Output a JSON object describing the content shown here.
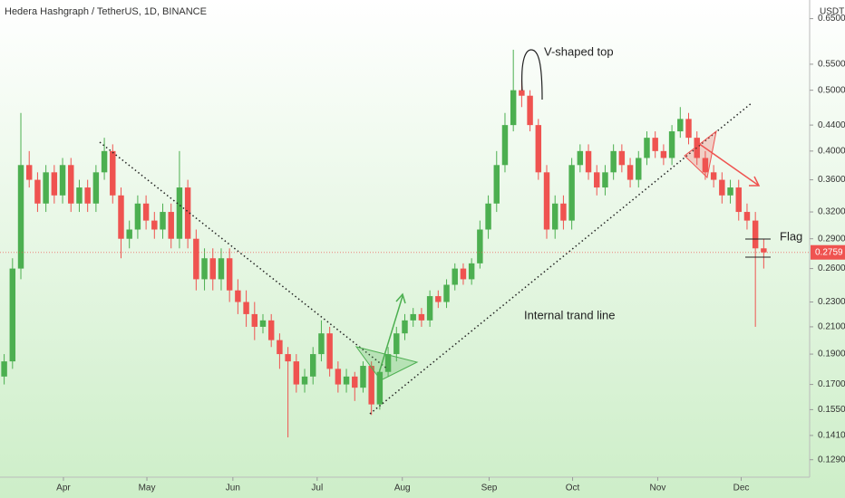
{
  "chart_data": {
    "type": "candlestick",
    "title": "Hedera Hashgraph / TetherUS, 1D, BINANCE",
    "y_axis_label": "USDT",
    "log_scale": true,
    "up_color": "#4caf50",
    "down_color": "#ef5350",
    "last_price": 0.2759,
    "annotations": [
      "V-shaped top",
      "Internal trand line",
      "Flag"
    ],
    "xlim": [
      0,
      97
    ],
    "xticks": [
      {
        "value": 7.6,
        "label": "Apr"
      },
      {
        "value": 17.6,
        "label": "May"
      },
      {
        "value": 27.9,
        "label": "Jun"
      },
      {
        "value": 38,
        "label": "Jul"
      },
      {
        "value": 48.2,
        "label": "Aug"
      },
      {
        "value": 58.6,
        "label": "Sep"
      },
      {
        "value": 68.6,
        "label": "Oct"
      },
      {
        "value": 78.8,
        "label": "Nov"
      },
      {
        "value": 88.8,
        "label": "Dec"
      }
    ],
    "ylim": [
      0.121,
      0.696
    ],
    "yticks": [
      {
        "value": 0.129,
        "label": "0.1290"
      },
      {
        "value": 0.141,
        "label": "0.1410"
      },
      {
        "value": 0.155,
        "label": "0.1550"
      },
      {
        "value": 0.17,
        "label": "0.1700"
      },
      {
        "value": 0.19,
        "label": "0.1900"
      },
      {
        "value": 0.21,
        "label": "0.2100"
      },
      {
        "value": 0.23,
        "label": "0.2300"
      },
      {
        "value": 0.26,
        "label": "0.2600"
      },
      {
        "value": 0.29,
        "label": "0.2900"
      },
      {
        "value": 0.32,
        "label": "0.3200"
      },
      {
        "value": 0.36,
        "label": "0.3600"
      },
      {
        "value": 0.4,
        "label": "0.4000"
      },
      {
        "value": 0.44,
        "label": "0.4400"
      },
      {
        "value": 0.5,
        "label": "0.5000"
      },
      {
        "value": 0.55,
        "label": "0.5500"
      },
      {
        "value": 0.65,
        "label": "0.6500"
      }
    ],
    "open": [
      0.175,
      0.185,
      0.26,
      0.38,
      0.36,
      0.33,
      0.37,
      0.34,
      0.38,
      0.33,
      0.35,
      0.33,
      0.37,
      0.4,
      0.34,
      0.29,
      0.3,
      0.33,
      0.31,
      0.3,
      0.32,
      0.29,
      0.35,
      0.29,
      0.25,
      0.27,
      0.25,
      0.27,
      0.24,
      0.23,
      0.22,
      0.21,
      0.215,
      0.2,
      0.19,
      0.185,
      0.17,
      0.175,
      0.19,
      0.205,
      0.18,
      0.17,
      0.175,
      0.168,
      0.182,
      0.158,
      0.178,
      0.19,
      0.205,
      0.215,
      0.22,
      0.215,
      0.235,
      0.23,
      0.245,
      0.26,
      0.25,
      0.265,
      0.3,
      0.33,
      0.38,
      0.44,
      0.5,
      0.49,
      0.44,
      0.37,
      0.3,
      0.33,
      0.31,
      0.38,
      0.4,
      0.37,
      0.35,
      0.37,
      0.4,
      0.38,
      0.36,
      0.39,
      0.42,
      0.4,
      0.39,
      0.43,
      0.45,
      0.42,
      0.39,
      0.37,
      0.36,
      0.34,
      0.35,
      0.32,
      0.31,
      0.28
    ],
    "high": [
      0.19,
      0.27,
      0.46,
      0.4,
      0.37,
      0.38,
      0.38,
      0.39,
      0.39,
      0.36,
      0.36,
      0.38,
      0.42,
      0.41,
      0.35,
      0.31,
      0.34,
      0.34,
      0.32,
      0.33,
      0.33,
      0.4,
      0.36,
      0.3,
      0.28,
      0.28,
      0.28,
      0.28,
      0.25,
      0.24,
      0.23,
      0.22,
      0.22,
      0.205,
      0.195,
      0.19,
      0.18,
      0.195,
      0.215,
      0.21,
      0.185,
      0.18,
      0.178,
      0.185,
      0.185,
      0.18,
      0.195,
      0.21,
      0.22,
      0.225,
      0.225,
      0.24,
      0.24,
      0.25,
      0.265,
      0.265,
      0.27,
      0.31,
      0.34,
      0.4,
      0.46,
      0.58,
      0.52,
      0.5,
      0.45,
      0.38,
      0.34,
      0.34,
      0.39,
      0.41,
      0.41,
      0.38,
      0.38,
      0.41,
      0.41,
      0.39,
      0.4,
      0.43,
      0.43,
      0.41,
      0.44,
      0.47,
      0.46,
      0.43,
      0.4,
      0.38,
      0.37,
      0.36,
      0.36,
      0.33,
      0.32,
      0.29
    ],
    "low": [
      0.17,
      0.18,
      0.25,
      0.35,
      0.32,
      0.32,
      0.33,
      0.33,
      0.32,
      0.32,
      0.32,
      0.32,
      0.36,
      0.33,
      0.27,
      0.28,
      0.29,
      0.3,
      0.29,
      0.29,
      0.28,
      0.28,
      0.28,
      0.24,
      0.24,
      0.24,
      0.24,
      0.23,
      0.22,
      0.21,
      0.2,
      0.205,
      0.195,
      0.18,
      0.14,
      0.165,
      0.165,
      0.17,
      0.185,
      0.175,
      0.165,
      0.165,
      0.16,
      0.165,
      0.152,
      0.155,
      0.175,
      0.185,
      0.2,
      0.21,
      0.21,
      0.21,
      0.225,
      0.225,
      0.24,
      0.245,
      0.245,
      0.26,
      0.29,
      0.32,
      0.37,
      0.43,
      0.47,
      0.43,
      0.36,
      0.29,
      0.29,
      0.3,
      0.3,
      0.37,
      0.36,
      0.34,
      0.34,
      0.36,
      0.37,
      0.35,
      0.35,
      0.38,
      0.39,
      0.38,
      0.38,
      0.42,
      0.41,
      0.38,
      0.36,
      0.35,
      0.33,
      0.33,
      0.31,
      0.3,
      0.21,
      0.26
    ],
    "close": [
      0.185,
      0.26,
      0.38,
      0.36,
      0.33,
      0.37,
      0.34,
      0.38,
      0.33,
      0.35,
      0.33,
      0.37,
      0.4,
      0.34,
      0.29,
      0.3,
      0.33,
      0.31,
      0.3,
      0.32,
      0.29,
      0.35,
      0.29,
      0.25,
      0.27,
      0.25,
      0.27,
      0.24,
      0.23,
      0.22,
      0.21,
      0.215,
      0.2,
      0.19,
      0.185,
      0.17,
      0.175,
      0.19,
      0.205,
      0.18,
      0.17,
      0.175,
      0.168,
      0.182,
      0.158,
      0.178,
      0.19,
      0.205,
      0.215,
      0.22,
      0.215,
      0.235,
      0.23,
      0.245,
      0.26,
      0.25,
      0.265,
      0.3,
      0.33,
      0.38,
      0.44,
      0.5,
      0.49,
      0.44,
      0.37,
      0.3,
      0.33,
      0.31,
      0.38,
      0.4,
      0.37,
      0.35,
      0.37,
      0.4,
      0.38,
      0.36,
      0.39,
      0.42,
      0.4,
      0.39,
      0.43,
      0.45,
      0.42,
      0.39,
      0.37,
      0.36,
      0.34,
      0.35,
      0.32,
      0.31,
      0.28,
      0.2759
    ]
  }
}
